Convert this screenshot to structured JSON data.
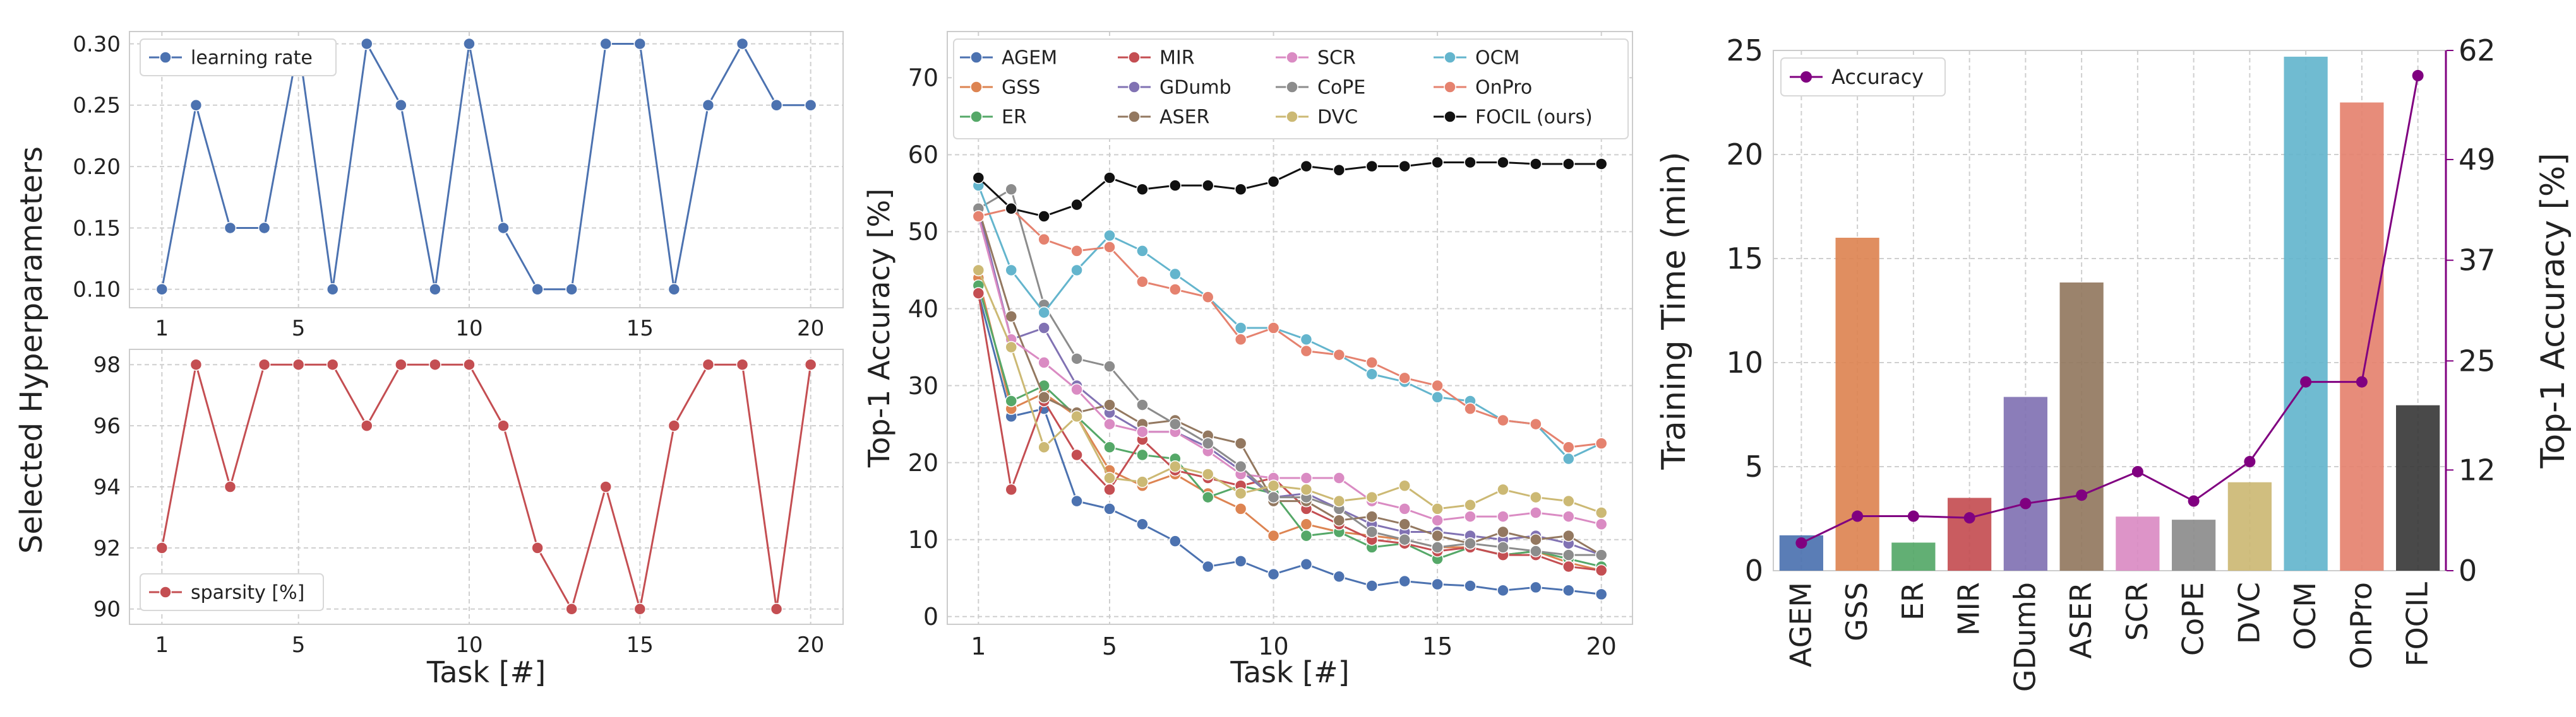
{
  "chart_data": [
    {
      "type": "line",
      "ylabel": "",
      "xlabel": "",
      "x_ticks": [
        1,
        5,
        10,
        15,
        20
      ],
      "ylim": [
        0.085,
        0.31
      ],
      "y_ticks": [
        0.1,
        0.15,
        0.2,
        0.25,
        0.3
      ],
      "y_tick_labels": [
        "0.10",
        "0.15",
        "0.20",
        "0.25",
        "0.30"
      ],
      "grid": true,
      "legend_position": "top-left",
      "series": [
        {
          "name": "learning rate",
          "color": "#4c72b0",
          "x": [
            1,
            2,
            3,
            4,
            5,
            6,
            7,
            8,
            9,
            10,
            11,
            12,
            13,
            14,
            15,
            16,
            17,
            18,
            19,
            20
          ],
          "values": [
            0.1,
            0.25,
            0.15,
            0.15,
            0.3,
            0.1,
            0.3,
            0.25,
            0.1,
            0.3,
            0.15,
            0.1,
            0.1,
            0.3,
            0.3,
            0.1,
            0.25,
            0.3,
            0.25,
            0.25
          ]
        }
      ]
    },
    {
      "type": "line",
      "xlabel": "Task [#]",
      "x_ticks": [
        1,
        5,
        10,
        15,
        20
      ],
      "ylim": [
        89.5,
        98.5
      ],
      "y_ticks": [
        90,
        92,
        94,
        96,
        98
      ],
      "grid": true,
      "legend_position": "bottom-left",
      "series": [
        {
          "name": "sparsity [%]",
          "color": "#c44e52",
          "x": [
            1,
            2,
            3,
            4,
            5,
            6,
            7,
            8,
            9,
            10,
            11,
            12,
            13,
            14,
            15,
            16,
            17,
            18,
            19,
            20
          ],
          "values": [
            92,
            98,
            94,
            98,
            98,
            98,
            96,
            98,
            98,
            98,
            96,
            92,
            90,
            94,
            90,
            96,
            98,
            98,
            90,
            98
          ]
        }
      ]
    },
    {
      "type": "line",
      "xlabel": "Task [#]",
      "ylabel": "Top-1 Accuracy [%]",
      "x_ticks": [
        1,
        5,
        10,
        15,
        20
      ],
      "ylim": [
        -1,
        76
      ],
      "y_ticks": [
        0,
        10,
        20,
        30,
        40,
        50,
        60,
        70
      ],
      "grid": true,
      "legend_position": "top (4 columns)",
      "x": [
        1,
        2,
        3,
        4,
        5,
        6,
        7,
        8,
        9,
        10,
        11,
        12,
        13,
        14,
        15,
        16,
        17,
        18,
        19,
        20
      ],
      "series": [
        {
          "name": "AGEM",
          "color": "#4c72b0",
          "values": [
            42,
            26,
            27,
            15,
            14,
            12,
            9.8,
            6.5,
            7.2,
            5.5,
            6.8,
            5.2,
            4,
            4.6,
            4.2,
            4,
            3.4,
            3.8,
            3.4,
            2.9
          ]
        },
        {
          "name": "GSS",
          "color": "#dd8452",
          "values": [
            44,
            27,
            29,
            26,
            19,
            17,
            18.5,
            16,
            14,
            10.5,
            12,
            11,
            10.5,
            10,
            9,
            9,
            8,
            8.5,
            7,
            6
          ]
        },
        {
          "name": "ER",
          "color": "#55a868",
          "values": [
            43,
            28,
            30,
            26,
            22,
            21,
            20.5,
            15.5,
            17,
            16,
            10.5,
            11,
            9,
            9.5,
            7.5,
            9,
            8,
            8.5,
            7.5,
            6.5
          ]
        },
        {
          "name": "MIR",
          "color": "#c44e52",
          "values": [
            42,
            16.5,
            28,
            21,
            16.5,
            23,
            19,
            18,
            17,
            18,
            14,
            12,
            10,
            9.5,
            8.5,
            9,
            8,
            8,
            6.5,
            6
          ]
        },
        {
          "name": "GDumb",
          "color": "#8172b3",
          "values": [
            53,
            36,
            37.5,
            30,
            26.5,
            24,
            24,
            22,
            19,
            15.5,
            16,
            14,
            12,
            11,
            11,
            10.5,
            10,
            10.5,
            9.5,
            8
          ]
        },
        {
          "name": "ASER",
          "color": "#937860",
          "values": [
            53,
            39,
            28.5,
            26.5,
            27.5,
            25,
            25.5,
            23.5,
            22.5,
            15,
            15,
            12.5,
            13,
            12,
            10.5,
            9.5,
            11,
            10,
            10.5,
            8
          ]
        },
        {
          "name": "SCR",
          "color": "#da8bc3",
          "values": [
            52,
            36,
            33,
            29.5,
            25,
            24,
            24,
            21.5,
            18.5,
            18,
            18,
            18,
            15,
            14,
            12.5,
            13,
            13,
            13.5,
            13,
            12
          ]
        },
        {
          "name": "CoPE",
          "color": "#8c8c8c",
          "values": [
            53,
            55.5,
            40.5,
            33.5,
            32.5,
            27.5,
            25,
            22.5,
            19.5,
            15.5,
            15.5,
            14,
            11,
            10,
            9,
            9.5,
            9,
            8.5,
            8,
            8
          ]
        },
        {
          "name": "DVC",
          "color": "#ccb974",
          "values": [
            45,
            35,
            22,
            26,
            18,
            17.5,
            19.5,
            18.5,
            16,
            17,
            16.5,
            15,
            15.5,
            17,
            14,
            14.5,
            16.5,
            15.5,
            15,
            13.5
          ]
        },
        {
          "name": "OCM",
          "color": "#64b5cd",
          "values": [
            56,
            45,
            39.5,
            45,
            49.5,
            47.5,
            44.5,
            41.5,
            37.5,
            37.5,
            36,
            34,
            31.5,
            30.5,
            28.5,
            28,
            25.5,
            25,
            20.5,
            22.5
          ]
        },
        {
          "name": "OnPro",
          "color": "#e5826f",
          "values": [
            52,
            53,
            49,
            47.5,
            48,
            43.5,
            42.5,
            41.5,
            36,
            37.5,
            34.5,
            34,
            33,
            31,
            30,
            27,
            25.5,
            25,
            22,
            22.5
          ]
        },
        {
          "name": "FOCIL (ours)",
          "color": "#111111",
          "values": [
            57,
            53,
            52,
            53.5,
            57,
            55.5,
            56,
            56,
            55.5,
            56.5,
            58.5,
            58,
            58.5,
            58.5,
            59,
            59,
            59,
            58.8,
            58.8,
            58.8
          ]
        }
      ]
    },
    {
      "type": "bar",
      "ylabel": "Training Time (min)",
      "y2label": "Top-1 Accuracy [%]",
      "categories": [
        "AGEM",
        "GSS",
        "ER",
        "MIR",
        "GDumb",
        "ASER",
        "SCR",
        "CoPE",
        "DVC",
        "OCM",
        "OnPro",
        "FOCIL"
      ],
      "values": [
        1.7,
        16.0,
        1.35,
        3.5,
        8.35,
        13.85,
        2.6,
        2.45,
        4.25,
        24.7,
        22.5,
        7.95
      ],
      "bar_colors": [
        "#4c72b0",
        "#dd8452",
        "#55a868",
        "#c44e52",
        "#8172b3",
        "#937860",
        "#da8bc3",
        "#8c8c8c",
        "#ccb974",
        "#64b5cd",
        "#e5826f",
        "#3a3a3a"
      ],
      "ylim": [
        0,
        25
      ],
      "y_ticks": [
        0,
        5,
        10,
        15,
        20,
        25
      ],
      "y2lim": [
        0,
        62
      ],
      "y2_ticks": [
        0,
        12,
        25,
        37,
        49,
        62
      ],
      "grid": true,
      "legend_position": "top-left",
      "accuracy_series": {
        "name": "Accuracy",
        "color": "#800080",
        "values": [
          3.3,
          6.5,
          6.5,
          6.3,
          8,
          9,
          11.8,
          8.3,
          13,
          22.5,
          22.5,
          59
        ]
      }
    }
  ],
  "shared_labels": {
    "left_ylabel": "Selected Hyperparameters"
  },
  "colors": {
    "grid": "#cfcfcf",
    "frame": "#cccccc",
    "accent_purple": "#800080"
  }
}
